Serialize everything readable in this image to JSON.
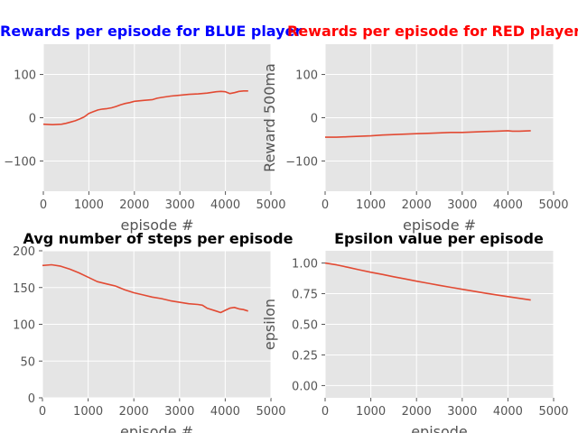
{
  "chart_data": [
    {
      "type": "line",
      "title": "Rewards per episode for BLUE player",
      "title_color": "#0000ff",
      "xlabel": "episode #",
      "ylabel": "",
      "xlim": [
        0,
        5000
      ],
      "ylim": [
        -170,
        170
      ],
      "xticks": [
        0,
        1000,
        2000,
        3000,
        4000,
        5000
      ],
      "yticks": [
        -100,
        0,
        100
      ],
      "line_color": "#e24a33",
      "grid": true,
      "series": [
        {
          "x": [
            0,
            200,
            400,
            500,
            600,
            700,
            800,
            900,
            1000,
            1100,
            1200,
            1300,
            1400,
            1500,
            1600,
            1700,
            1800,
            1900,
            2000,
            2200,
            2400,
            2500,
            2600,
            2800,
            3000,
            3200,
            3400,
            3600,
            3800,
            3900,
            4000,
            4100,
            4200,
            4300,
            4400,
            4500
          ],
          "y": [
            -15,
            -16,
            -15,
            -13,
            -10,
            -7,
            -3,
            2,
            10,
            14,
            18,
            20,
            21,
            23,
            26,
            30,
            33,
            35,
            38,
            40,
            42,
            45,
            47,
            50,
            52,
            54,
            55,
            57,
            60,
            61,
            60,
            56,
            58,
            61,
            62,
            62
          ]
        }
      ]
    },
    {
      "type": "line",
      "title": "Rewards per episode for RED player",
      "title_color": "#ff0000",
      "xlabel": "episode #",
      "ylabel": "Reward 500ma",
      "xlim": [
        0,
        5000
      ],
      "ylim": [
        -170,
        170
      ],
      "xticks": [
        0,
        1000,
        2000,
        3000,
        4000,
        5000
      ],
      "yticks": [
        -100,
        0,
        100
      ],
      "line_color": "#e24a33",
      "grid": true,
      "series": [
        {
          "x": [
            0,
            250,
            500,
            750,
            1000,
            1250,
            1500,
            1750,
            2000,
            2250,
            2500,
            2750,
            3000,
            3250,
            3500,
            3750,
            4000,
            4100,
            4250,
            4500
          ],
          "y": [
            -45,
            -45,
            -44,
            -43,
            -42,
            -40,
            -39,
            -38,
            -37,
            -36,
            -35,
            -34,
            -34,
            -33,
            -32,
            -31,
            -30,
            -31,
            -31,
            -30
          ]
        }
      ]
    },
    {
      "type": "line",
      "title": "Avg number of steps per episode",
      "title_color": "#000000",
      "xlabel": "episode #",
      "ylabel": "",
      "xlim": [
        0,
        5000
      ],
      "ylim": [
        0,
        200
      ],
      "xticks": [
        0,
        1000,
        2000,
        3000,
        4000,
        5000
      ],
      "yticks": [
        0,
        50,
        100,
        150,
        200
      ],
      "line_color": "#e24a33",
      "grid": true,
      "series": [
        {
          "x": [
            0,
            200,
            400,
            600,
            800,
            1000,
            1200,
            1400,
            1600,
            1800,
            2000,
            2200,
            2400,
            2600,
            2800,
            3000,
            3200,
            3400,
            3500,
            3600,
            3800,
            3900,
            4000,
            4100,
            4200,
            4300,
            4400,
            4500
          ],
          "y": [
            180,
            181,
            179,
            175,
            170,
            164,
            158,
            155,
            152,
            147,
            143,
            140,
            137,
            135,
            132,
            130,
            128,
            127,
            126,
            122,
            118,
            116,
            119,
            122,
            123,
            121,
            120,
            118
          ]
        }
      ]
    },
    {
      "type": "line",
      "title": "Epsilon value per episode",
      "title_color": "#000000",
      "xlabel": "episode",
      "ylabel": "epsilon",
      "xlim": [
        0,
        5000
      ],
      "ylim": [
        -0.1,
        1.1
      ],
      "xticks": [
        0,
        1000,
        2000,
        3000,
        4000,
        5000
      ],
      "yticks": [
        0.0,
        0.25,
        0.5,
        0.75,
        1.0
      ],
      "ytick_labels": [
        "0.00",
        "0.25",
        "0.50",
        "0.75",
        "1.00"
      ],
      "line_color": "#e24a33",
      "grid": true,
      "series": [
        {
          "x": [
            0,
            250,
            500,
            750,
            1000,
            1250,
            1500,
            1750,
            2000,
            2250,
            2500,
            2750,
            3000,
            3250,
            3500,
            3750,
            4000,
            4250,
            4500
          ],
          "y": [
            1.0,
            0.985,
            0.965,
            0.945,
            0.925,
            0.907,
            0.888,
            0.87,
            0.852,
            0.835,
            0.818,
            0.802,
            0.786,
            0.77,
            0.755,
            0.74,
            0.726,
            0.712,
            0.698
          ]
        }
      ]
    }
  ]
}
